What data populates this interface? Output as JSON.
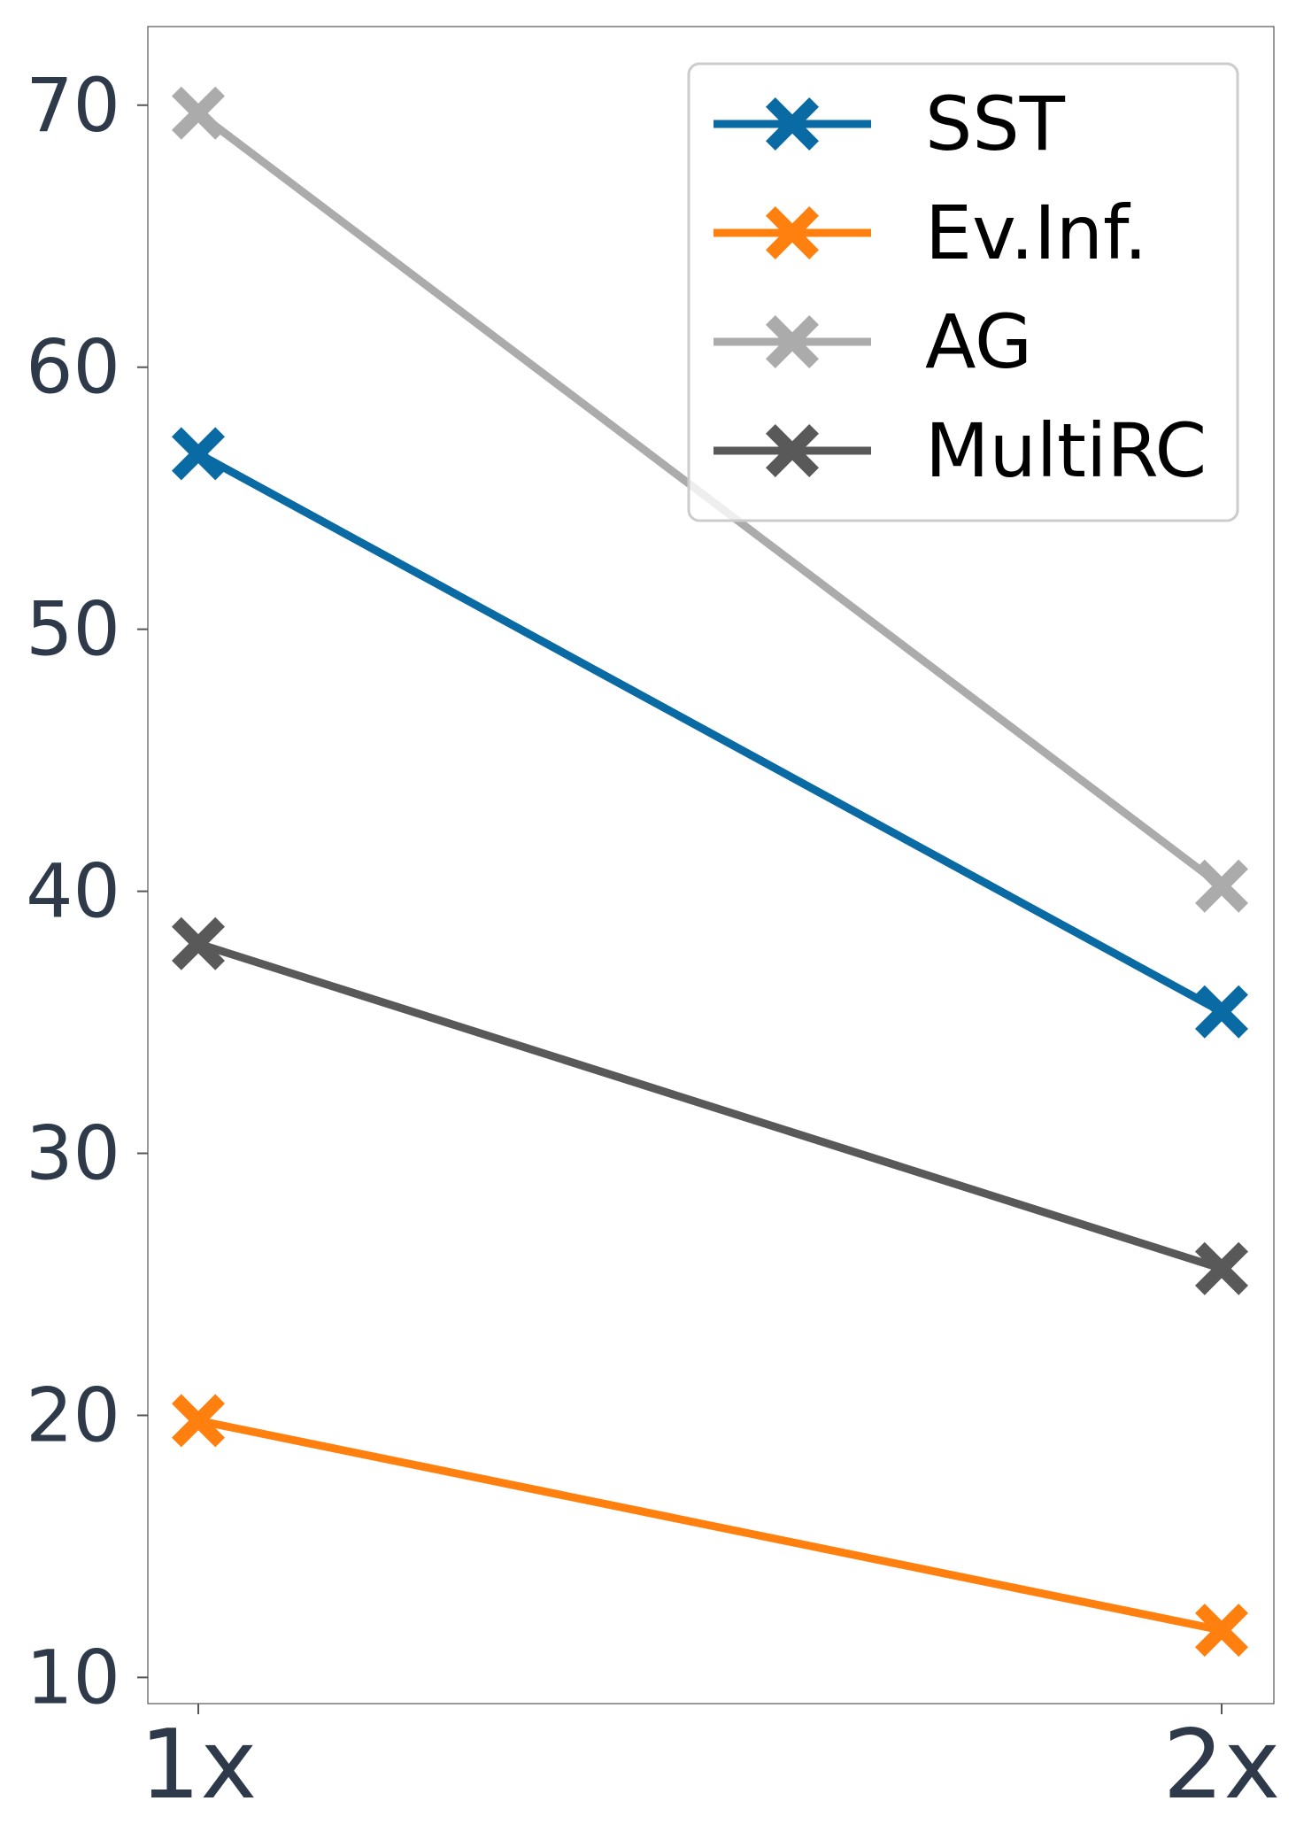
{
  "chart_data": {
    "type": "line",
    "title": "",
    "xlabel": "",
    "ylabel": "",
    "categories": [
      "1x",
      "2x"
    ],
    "ylim": [
      9,
      73
    ],
    "yticks": [
      10,
      20,
      30,
      40,
      50,
      60,
      70
    ],
    "ytick_labels": [
      "10",
      "20",
      "30",
      "40",
      "50",
      "60",
      "70"
    ],
    "grid": false,
    "legend_position": "top-right",
    "marker": "X",
    "series": [
      {
        "name": "SST",
        "values": [
          56.7,
          35.4
        ],
        "color": "#0a6aa3"
      },
      {
        "name": "Ev.Inf.",
        "values": [
          19.8,
          11.8
        ],
        "color": "#ff800e"
      },
      {
        "name": "AG",
        "values": [
          69.7,
          40.2
        ],
        "color": "#ababab"
      },
      {
        "name": "MultiRC",
        "values": [
          38.0,
          25.6
        ],
        "color": "#595959"
      }
    ]
  }
}
